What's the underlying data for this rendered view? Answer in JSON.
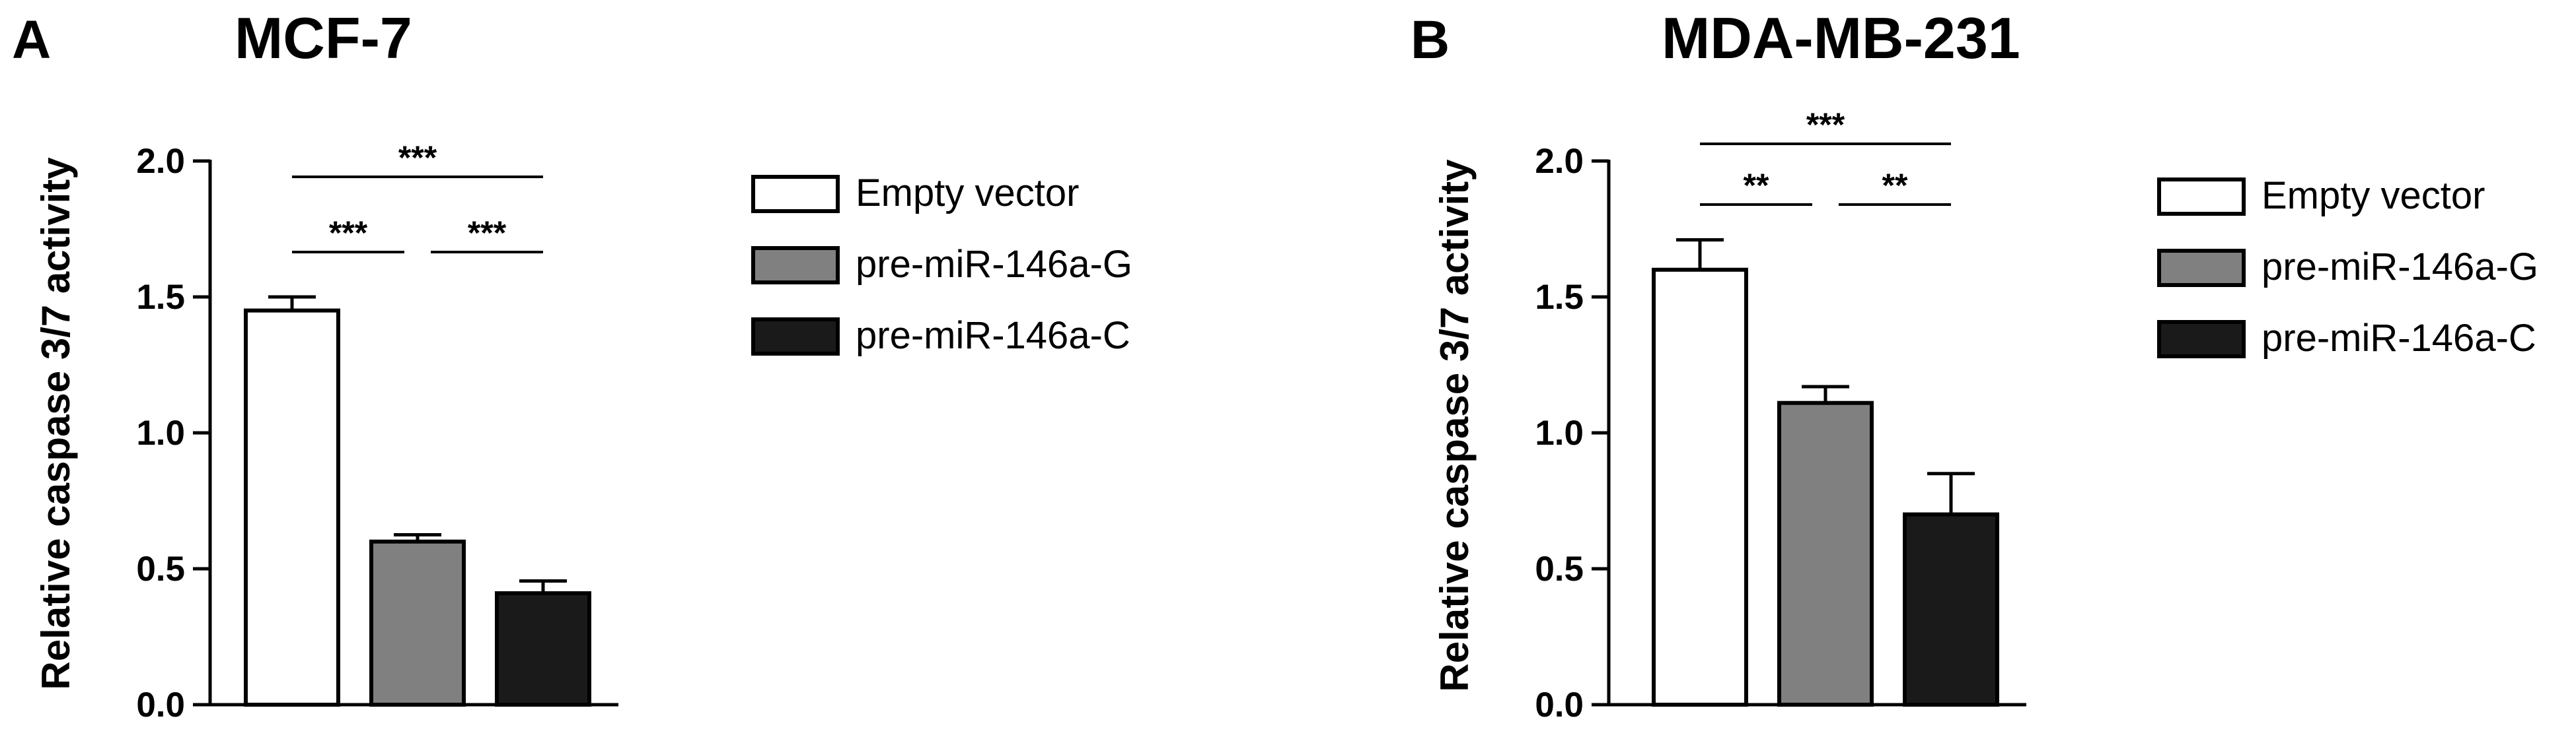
{
  "panels": [
    {
      "letter": "A",
      "chart_data": {
        "type": "bar",
        "title": "MCF-7",
        "xlabel": "",
        "ylabel": "Relative caspase 3/7 activity",
        "ylim": [
          0,
          2.0
        ],
        "yticks": [
          "0.0",
          "0.5",
          "1.0",
          "1.5",
          "2.0"
        ],
        "grid": false,
        "legend_position": "right",
        "categories": [
          "Empty vector",
          "pre-miR-146a-G",
          "pre-miR-146a-C"
        ],
        "values": [
          1.45,
          0.6,
          0.41
        ],
        "errors": [
          0.05,
          0.025,
          0.045
        ],
        "colors": [
          "#ffffff",
          "#808080",
          "#1a1a1a"
        ],
        "significance": [
          {
            "from": 0,
            "to": 1,
            "label": "***"
          },
          {
            "from": 1,
            "to": 2,
            "label": "***"
          },
          {
            "from": 0,
            "to": 2,
            "label": "***"
          }
        ]
      }
    },
    {
      "letter": "B",
      "chart_data": {
        "type": "bar",
        "title": "MDA-MB-231",
        "xlabel": "",
        "ylabel": "Relative caspase 3/7 activity",
        "ylim": [
          0,
          2.0
        ],
        "yticks": [
          "0.0",
          "0.5",
          "1.0",
          "1.5",
          "2.0"
        ],
        "grid": false,
        "legend_position": "right",
        "categories": [
          "Empty vector",
          "pre-miR-146a-G",
          "pre-miR-146a-C"
        ],
        "values": [
          1.6,
          1.11,
          0.7
        ],
        "errors": [
          0.11,
          0.06,
          0.15
        ],
        "colors": [
          "#ffffff",
          "#808080",
          "#1a1a1a"
        ],
        "significance": [
          {
            "from": 0,
            "to": 1,
            "label": "**"
          },
          {
            "from": 1,
            "to": 2,
            "label": "**"
          },
          {
            "from": 0,
            "to": 2,
            "label": "***"
          }
        ]
      }
    }
  ]
}
